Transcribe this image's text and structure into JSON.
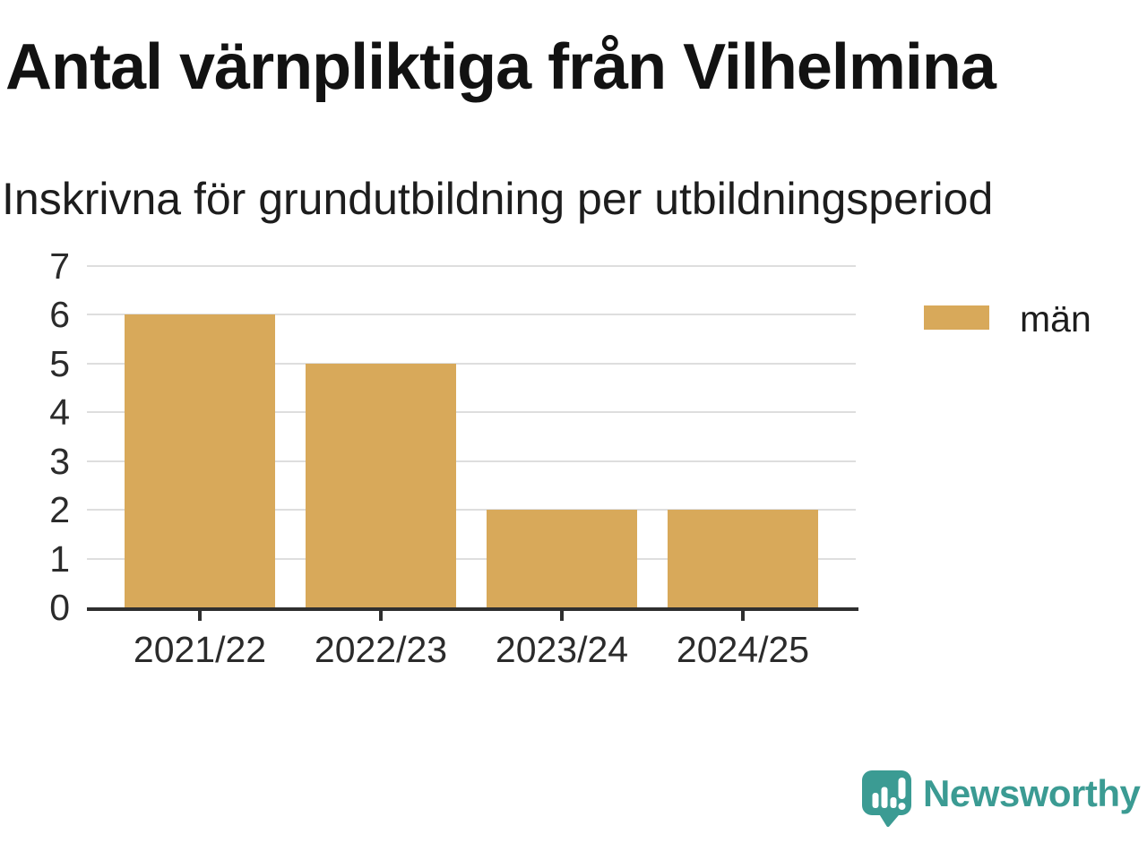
{
  "chart_data": {
    "type": "bar",
    "title": "Antal värnpliktiga från Vilhelmina",
    "subtitle": "Inskrivna för grundutbildning per utbildningsperiod",
    "categories": [
      "2021/22",
      "2022/23",
      "2023/24",
      "2024/25"
    ],
    "series": [
      {
        "name": "män",
        "values": [
          6,
          5,
          2,
          2
        ],
        "color": "#D8A95A"
      }
    ],
    "xlabel": "",
    "ylabel": "",
    "ylim": [
      0,
      7
    ],
    "yticks": [
      0,
      1,
      2,
      3,
      4,
      5,
      6,
      7
    ],
    "grid": true,
    "grid_color": "#DEDEDE",
    "axis_color": "#2F2F2F",
    "legend_position": "right"
  },
  "footer": {
    "brand": "Newsworthy",
    "brand_color": "#3B9B93"
  }
}
